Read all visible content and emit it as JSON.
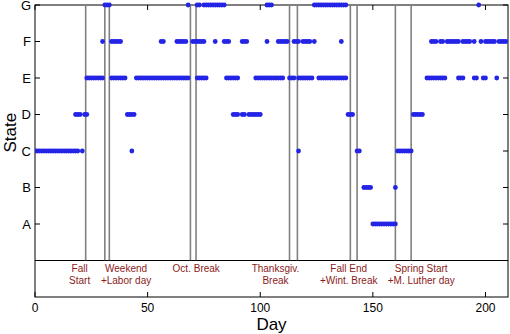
{
  "chart_data": {
    "type": "scatter",
    "x_label": "Day",
    "y_label": "State",
    "xlim": [
      0,
      210
    ],
    "xticks": [
      0,
      50,
      100,
      150,
      200
    ],
    "ylim": [
      0,
      7
    ],
    "yticks": [
      {
        "value": 1,
        "label": "A"
      },
      {
        "value": 2,
        "label": "B"
      },
      {
        "value": 3,
        "label": "C"
      },
      {
        "value": 4,
        "label": "D"
      },
      {
        "value": 5,
        "label": "E"
      },
      {
        "value": 6,
        "label": "F"
      },
      {
        "value": 7,
        "label": "G"
      }
    ],
    "series": [
      {
        "color": "#2424e6",
        "marker": "circle",
        "x": [
          0,
          1,
          2,
          3,
          4,
          5,
          6,
          7,
          8,
          9,
          10,
          11,
          12,
          13,
          14,
          15,
          16,
          17,
          18,
          19,
          21,
          18,
          19,
          20,
          22,
          23,
          23,
          24,
          25,
          26,
          27,
          28,
          29,
          30,
          30,
          31,
          32,
          33,
          34,
          35,
          36,
          37,
          38,
          34,
          35,
          36,
          37,
          38,
          39,
          40,
          41,
          42,
          43,
          44,
          43,
          45,
          46,
          47,
          48,
          49,
          50,
          51,
          52,
          53,
          54,
          55,
          56,
          57,
          58,
          59,
          60,
          61,
          62,
          63,
          64,
          65,
          66,
          67,
          68,
          56,
          57,
          63,
          64,
          65,
          66,
          67,
          68,
          70,
          71,
          72,
          73,
          74,
          75,
          72,
          73,
          74,
          75,
          76,
          72,
          73,
          75,
          76,
          77,
          78,
          79,
          80,
          81,
          82,
          83,
          84,
          80,
          84,
          85,
          86,
          85,
          86,
          87,
          88,
          89,
          90,
          88,
          89,
          90,
          92,
          93,
          95,
          96,
          97,
          98,
          99,
          100,
          92,
          93,
          94,
          98,
          99,
          100,
          101,
          102,
          103,
          104,
          105,
          106,
          107,
          108,
          109,
          110,
          103,
          108,
          109,
          110,
          111,
          112,
          103,
          104,
          105,
          113,
          114,
          115,
          117,
          118,
          119,
          120,
          121,
          122,
          123,
          115,
          116,
          117,
          119,
          120,
          121,
          122,
          124,
          117,
          124,
          125,
          126,
          127,
          128,
          129,
          130,
          131,
          132,
          133,
          134,
          135,
          136,
          137,
          138,
          126,
          127,
          128,
          129,
          130,
          131,
          132,
          133,
          134,
          135,
          136,
          137,
          138,
          136,
          139,
          140,
          141,
          143,
          144,
          146,
          147,
          148,
          149,
          150,
          151,
          152,
          153,
          154,
          155,
          156,
          157,
          158,
          159,
          160,
          160,
          161,
          162,
          163,
          164,
          165,
          166,
          167,
          168,
          169,
          170,
          171,
          172,
          174,
          175,
          176,
          177,
          178,
          179,
          180,
          181,
          182,
          188,
          189,
          190,
          195,
          196,
          199,
          200,
          205,
          176,
          177,
          178,
          180,
          181,
          183,
          184,
          185,
          186,
          187,
          188,
          190,
          191,
          192,
          193,
          195,
          198,
          200,
          201,
          202,
          203,
          204,
          206,
          207,
          208,
          209,
          197
        ],
        "values": [
          3,
          3,
          3,
          3,
          3,
          3,
          3,
          3,
          3,
          3,
          3,
          3,
          3,
          3,
          3,
          3,
          3,
          3,
          3,
          3,
          3,
          4,
          4,
          4,
          4,
          4,
          5,
          5,
          5,
          5,
          5,
          5,
          5,
          5,
          6,
          7,
          7,
          7,
          6,
          6,
          6,
          6,
          6,
          5,
          5,
          5,
          5,
          5,
          5,
          5,
          4,
          4,
          4,
          4,
          3,
          5,
          5,
          5,
          5,
          5,
          5,
          5,
          5,
          5,
          5,
          5,
          5,
          5,
          5,
          5,
          5,
          5,
          5,
          5,
          5,
          5,
          5,
          5,
          5,
          6,
          6,
          6,
          6,
          6,
          6,
          6,
          7,
          6,
          6,
          6,
          6,
          6,
          6,
          5,
          5,
          5,
          5,
          5,
          7,
          7,
          7,
          7,
          7,
          7,
          7,
          7,
          7,
          7,
          7,
          7,
          6,
          6,
          6,
          6,
          5,
          5,
          5,
          5,
          5,
          5,
          4,
          4,
          4,
          4,
          4,
          4,
          4,
          4,
          4,
          4,
          4,
          6,
          6,
          6,
          5,
          5,
          5,
          5,
          5,
          5,
          5,
          5,
          5,
          5,
          5,
          5,
          5,
          6,
          6,
          6,
          6,
          6,
          6,
          7,
          7,
          7,
          5,
          5,
          5,
          5,
          5,
          5,
          5,
          5,
          5,
          5,
          6,
          6,
          6,
          6,
          6,
          6,
          6,
          6,
          3,
          7,
          7,
          7,
          7,
          7,
          7,
          7,
          7,
          7,
          7,
          7,
          7,
          7,
          7,
          7,
          5,
          5,
          5,
          5,
          5,
          5,
          5,
          5,
          5,
          5,
          5,
          5,
          5,
          6,
          4,
          4,
          4,
          3,
          3,
          2,
          2,
          2,
          2,
          1,
          1,
          1,
          1,
          1,
          1,
          1,
          1,
          1,
          1,
          1,
          2,
          3,
          3,
          3,
          3,
          3,
          3,
          3,
          4,
          4,
          4,
          4,
          4,
          5,
          5,
          5,
          5,
          5,
          5,
          5,
          5,
          5,
          5,
          5,
          5,
          5,
          5,
          5,
          5,
          5,
          6,
          6,
          6,
          6,
          6,
          6,
          6,
          6,
          6,
          6,
          6,
          6,
          6,
          6,
          6,
          6,
          6,
          6,
          6,
          6,
          6,
          6,
          6,
          6,
          6,
          6,
          7
        ]
      }
    ],
    "annotations": [
      {
        "text": [
          "Fall",
          "Start"
        ],
        "x": [
          22.5
        ]
      },
      {
        "text": [
          "Weekend",
          "+Labor day"
        ],
        "x": [
          31,
          33
        ]
      },
      {
        "text": [
          "Oct. Break"
        ],
        "x": [
          69,
          71.5
        ]
      },
      {
        "text": [
          "Thanksgiv.",
          "Break"
        ],
        "x": [
          113,
          116.5
        ]
      },
      {
        "text": [
          "Fall End",
          "+Wint. Break"
        ],
        "x": [
          140,
          143
        ]
      },
      {
        "text": [
          "Spring Start",
          "+M. Luther day"
        ],
        "x": [
          160,
          167
        ]
      }
    ]
  }
}
